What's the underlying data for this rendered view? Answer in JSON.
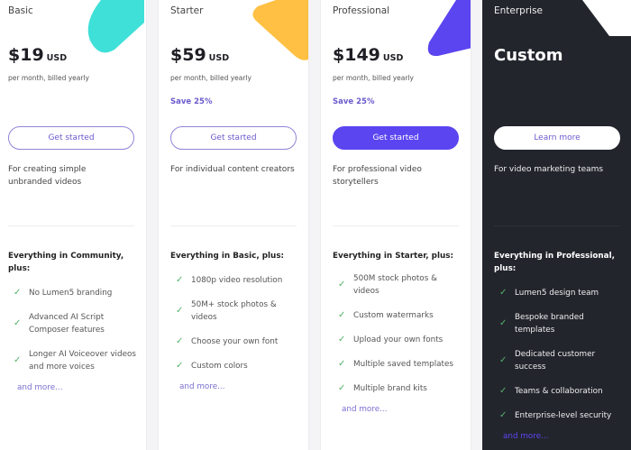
{
  "plans": [
    {
      "name": "Basic",
      "price": "$19",
      "currency": "USD",
      "billing": "per month, billed yearly",
      "save": "",
      "button": "Get started",
      "description": "For creating simple unbranded videos",
      "features_heading": "Everything in Community, plus:",
      "features": [
        "No Lumen5 branding",
        "Advanced AI Script Composer features",
        "Longer AI Voiceover videos and more voices"
      ],
      "more": "and more..."
    },
    {
      "name": "Starter",
      "price": "$59",
      "currency": "USD",
      "billing": "per month, billed yearly",
      "save": "Save 25%",
      "button": "Get started",
      "description": "For individual content creators",
      "features_heading": "Everything in Basic, plus:",
      "features": [
        "1080p video resolution",
        "50M+ stock photos & videos",
        "Choose your own font",
        "Custom colors"
      ],
      "more": "and more..."
    },
    {
      "name": "Professional",
      "price": "$149",
      "currency": "USD",
      "billing": "per month, billed yearly",
      "save": "Save 25%",
      "button": "Get started",
      "description": "For professional video storytellers",
      "features_heading": "Everything in Starter, plus:",
      "features": [
        "500M stock photos & videos",
        "Custom watermarks",
        "Upload your own fonts",
        "Multiple saved templates",
        "Multiple brand kits"
      ],
      "more": "and more..."
    },
    {
      "name": "Enterprise",
      "price": "Custom",
      "button": "Learn more",
      "description": "For video marketing teams",
      "features_heading": "Everything in Professional, plus:",
      "features": [
        "Lumen5 design team",
        "Bespoke branded templates",
        "Dedicated customer success",
        "Teams & collaboration",
        "Enterprise-level security"
      ],
      "more": "and more..."
    }
  ],
  "colors": {
    "accent": "#5b45f0",
    "check": "#52b36a",
    "teal": "#3fe0d8",
    "yellow": "#ffc043",
    "dark": "#23252d"
  },
  "icons": {
    "feature": "check-icon"
  }
}
